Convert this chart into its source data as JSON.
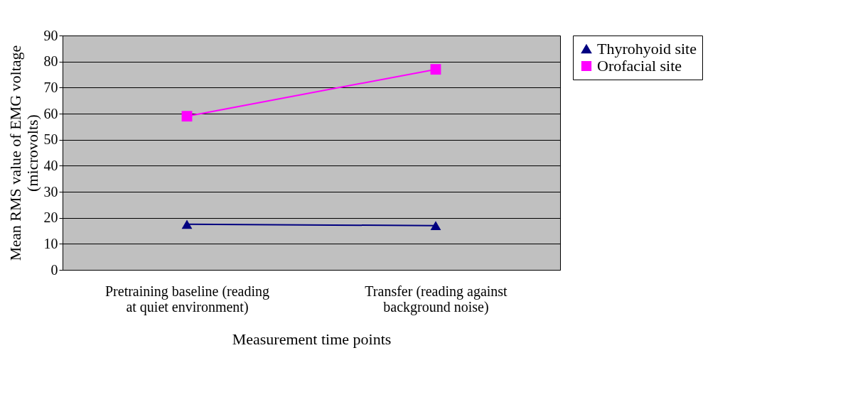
{
  "chart_data": {
    "type": "line",
    "xlabel": "Measurement time points",
    "ylabel": "Mean RMS value of EMG voltage (microvolts)",
    "categories": [
      "Pretraining baseline (reading at quiet environment)",
      "Transfer (reading against background noise)"
    ],
    "series": [
      {
        "name": "Thyrohyoid site",
        "color": "#000080",
        "marker": "triangle",
        "values": [
          17.5,
          17.0
        ]
      },
      {
        "name": "Orofacial site",
        "color": "#ff00ff",
        "marker": "square",
        "values": [
          59,
          77
        ]
      }
    ],
    "ylim": [
      0,
      90
    ],
    "yticks": [
      0,
      10,
      20,
      30,
      40,
      50,
      60,
      70,
      80,
      90
    ],
    "grid": "y",
    "legend": "right",
    "line_style": "solid"
  }
}
